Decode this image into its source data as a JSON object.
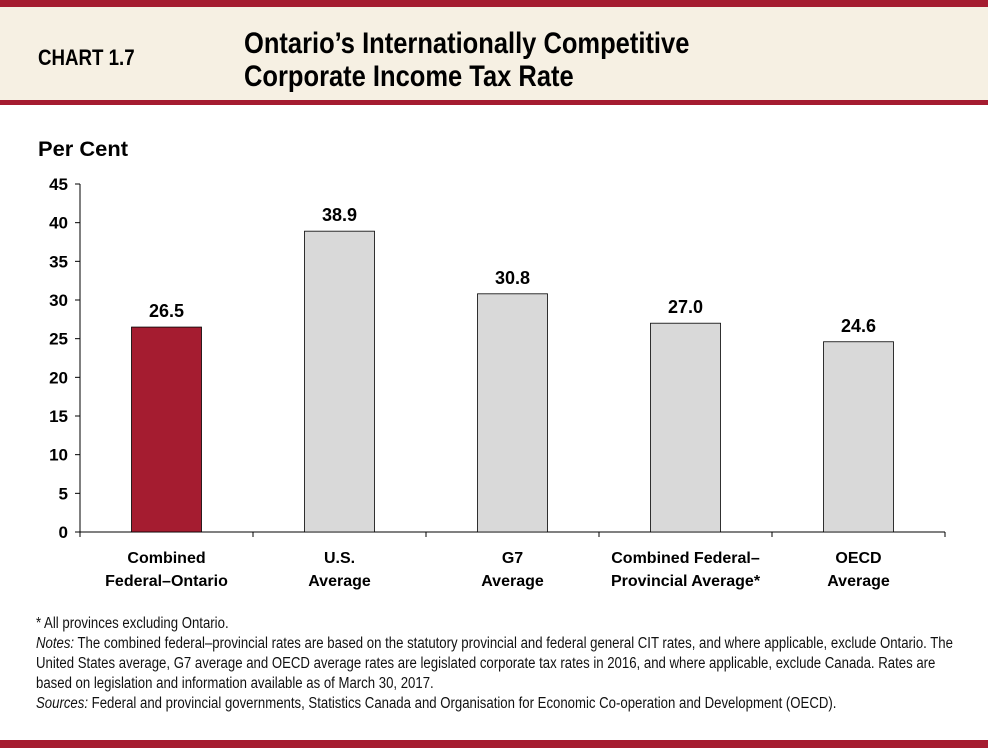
{
  "header": {
    "chart_number": "CHART 1.7",
    "title_line1": "Ontario’s Internationally Competitive",
    "title_line2": "Corporate Income Tax Rate"
  },
  "chart_data": {
    "type": "bar",
    "ylabel": "Per Cent",
    "ylim": [
      0,
      45
    ],
    "yticks": [
      0,
      5,
      10,
      15,
      20,
      25,
      30,
      35,
      40,
      45
    ],
    "categories": [
      [
        "Combined",
        "Federal–Ontario"
      ],
      [
        "U.S.",
        "Average"
      ],
      [
        "G7",
        "Average"
      ],
      [
        "Combined Federal–",
        "Provincial Average*"
      ],
      [
        "OECD",
        "Average"
      ]
    ],
    "values": [
      26.5,
      38.9,
      30.8,
      27.0,
      24.6
    ],
    "data_labels": [
      "26.5",
      "38.9",
      "30.8",
      "27.0",
      "24.6"
    ],
    "colors": [
      "#a51c30",
      "#d9d9d9",
      "#d9d9d9",
      "#d9d9d9",
      "#d9d9d9"
    ],
    "grid": false
  },
  "footnotes": {
    "asterisk": "* All provinces excluding Ontario.",
    "notes_label": "Notes:",
    "notes_text": " The combined federal–provincial rates are based on the statutory provincial and federal general CIT rates, and where applicable, exclude Ontario. The United States average, G7 average and OECD average rates are legislated corporate tax rates in 2016, and where applicable, exclude Canada. Rates are based on legislation and information available as of March 30, 2017.",
    "sources_label": "Sources:",
    "sources_text": " Federal and provincial governments, Statistics Canada and Organisation for Economic Co-operation and Development (OECD)."
  }
}
